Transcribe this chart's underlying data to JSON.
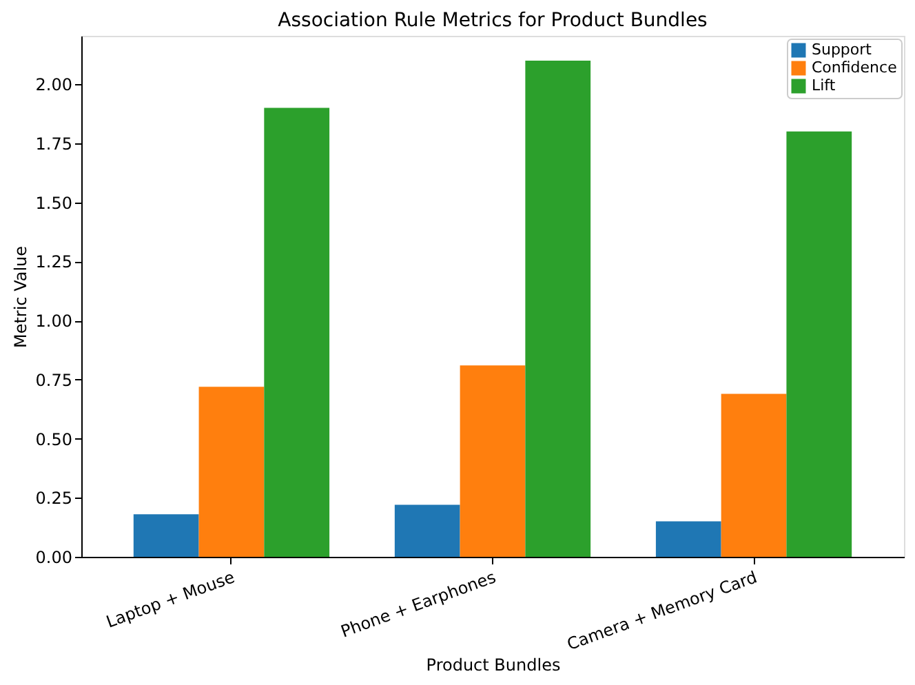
{
  "chart_data": {
    "type": "bar",
    "title": "Association Rule Metrics for Product Bundles",
    "xlabel": "Product Bundles",
    "ylabel": "Metric Value",
    "categories": [
      "Laptop + Mouse",
      "Phone + Earphones",
      "Camera + Memory Card"
    ],
    "series": [
      {
        "name": "Support",
        "color": "#1f77b4",
        "values": [
          0.18,
          0.22,
          0.15
        ]
      },
      {
        "name": "Confidence",
        "color": "#ff7f0e",
        "values": [
          0.72,
          0.81,
          0.69
        ]
      },
      {
        "name": "Lift",
        "color": "#2ca02c",
        "values": [
          1.9,
          2.1,
          1.8
        ]
      }
    ],
    "ylim": [
      0,
      2.205
    ],
    "yticks": [
      {
        "value": 0,
        "label": "0.00"
      },
      {
        "value": 0.25,
        "label": "0.25"
      },
      {
        "value": 0.5,
        "label": "0.50"
      },
      {
        "value": 0.75,
        "label": "0.75"
      },
      {
        "value": 1.0,
        "label": "1.00"
      },
      {
        "value": 1.25,
        "label": "1.25"
      },
      {
        "value": 1.5,
        "label": "1.50"
      },
      {
        "value": 1.75,
        "label": "1.75"
      },
      {
        "value": 2.0,
        "label": "2.00"
      }
    ],
    "legend": "top right",
    "grid": false
  }
}
